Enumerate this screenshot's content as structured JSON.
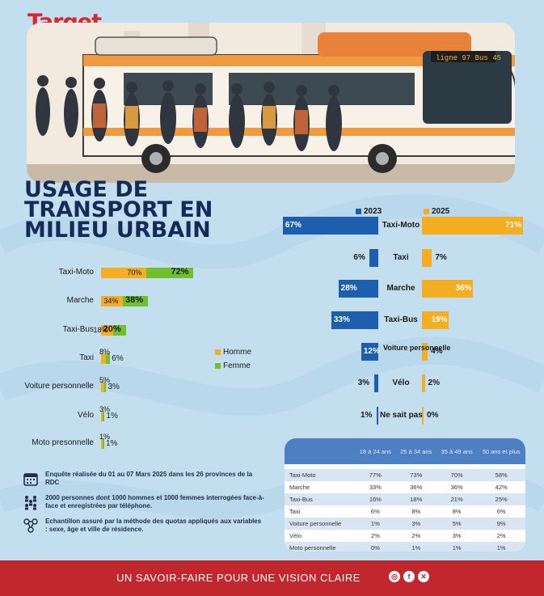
{
  "brand": {
    "logo": "Target",
    "footer_slogan": "UN SAVOIR-FAIRE POUR UNE VISION CLAIRE"
  },
  "banner": {
    "sign_text": "ligne 97 Bus 45"
  },
  "title": {
    "line1": "USAGE DE",
    "line2": "TRANSPORT EN",
    "line3": "MILIEU URBAIN"
  },
  "colors": {
    "homme": "#f5ad22",
    "femme": "#6fbf2f",
    "y2023": "#1d5fae",
    "y2025": "#f5ad22",
    "footer": "#c1272d"
  },
  "social_icons": [
    "instagram-icon",
    "facebook-icon",
    "x-icon"
  ],
  "chart_data": [
    {
      "type": "bar",
      "orientation": "horizontal-stacked",
      "categories": [
        "Taxi-Moto",
        "Marche",
        "Taxi-Bus",
        "Taxi",
        "Voiture personnelle",
        "Vélo",
        "Moto presonnelle"
      ],
      "series": [
        {
          "name": "Homme",
          "values": [
            70,
            34,
            18,
            8,
            5,
            3,
            1
          ],
          "labels": [
            "70%",
            "34%",
            "18%",
            "8%",
            "5%",
            "3%",
            "1%"
          ]
        },
        {
          "name": "Femme",
          "values": [
            72,
            38,
            20,
            6,
            3,
            1,
            1
          ],
          "labels": [
            "72%",
            "38%",
            "20%",
            "6%",
            "3%",
            "1%",
            "1%"
          ]
        }
      ],
      "legend": [
        "Homme",
        "Femme"
      ]
    },
    {
      "type": "bar",
      "orientation": "horizontal-diverging",
      "categories": [
        "Taxi-Moto",
        "Taxi",
        "Marche",
        "Taxi-Bus",
        "Voiture personnelle",
        "Vélo",
        "Ne sait pas"
      ],
      "series": [
        {
          "name": "2023",
          "values": [
            67,
            6,
            28,
            33,
            12,
            3,
            1
          ],
          "labels": [
            "67%",
            "6%",
            "28%",
            "33%",
            "12%",
            "3%",
            "1%"
          ]
        },
        {
          "name": "2025",
          "values": [
            71,
            7,
            36,
            19,
            4,
            2,
            0
          ],
          "labels": [
            "71%",
            "7%",
            "36%",
            "19%",
            "4%",
            "2%",
            "0%"
          ]
        }
      ]
    },
    {
      "type": "table",
      "columns": [
        "",
        "18 à 24 ans",
        "25 à 34 ans",
        "35 à 49 ans",
        "50 ans et plus"
      ],
      "rows": [
        [
          "Taxi-Moto",
          "77%",
          "73%",
          "70%",
          "58%"
        ],
        [
          "Marche",
          "33%",
          "36%",
          "36%",
          "42%"
        ],
        [
          "Taxi-Bus",
          "16%",
          "18%",
          "21%",
          "25%"
        ],
        [
          "Taxi",
          "6%",
          "8%",
          "8%",
          "6%"
        ],
        [
          "Voiture personnelle",
          "1%",
          "3%",
          "5%",
          "9%"
        ],
        [
          "Vélo",
          "2%",
          "2%",
          "3%",
          "2%"
        ],
        [
          "Moto personnelle",
          "0%",
          "1%",
          "1%",
          "1%"
        ]
      ]
    }
  ],
  "notes": [
    {
      "icon": "calendar-icon",
      "text": "Enquête réalisée du 01 au 07 Mars 2025 dans les 26 provinces de la RDC"
    },
    {
      "icon": "people-icon",
      "text": "2000 personnes dont 1000 hommes et 1000 femmes interrogées face-à-face et enregistrées par téléphone."
    },
    {
      "icon": "sample-icon",
      "text": "Echantillon assuré par la méthode des quotas appliqués aux variables : sexe, âge et ville de résidence."
    }
  ]
}
